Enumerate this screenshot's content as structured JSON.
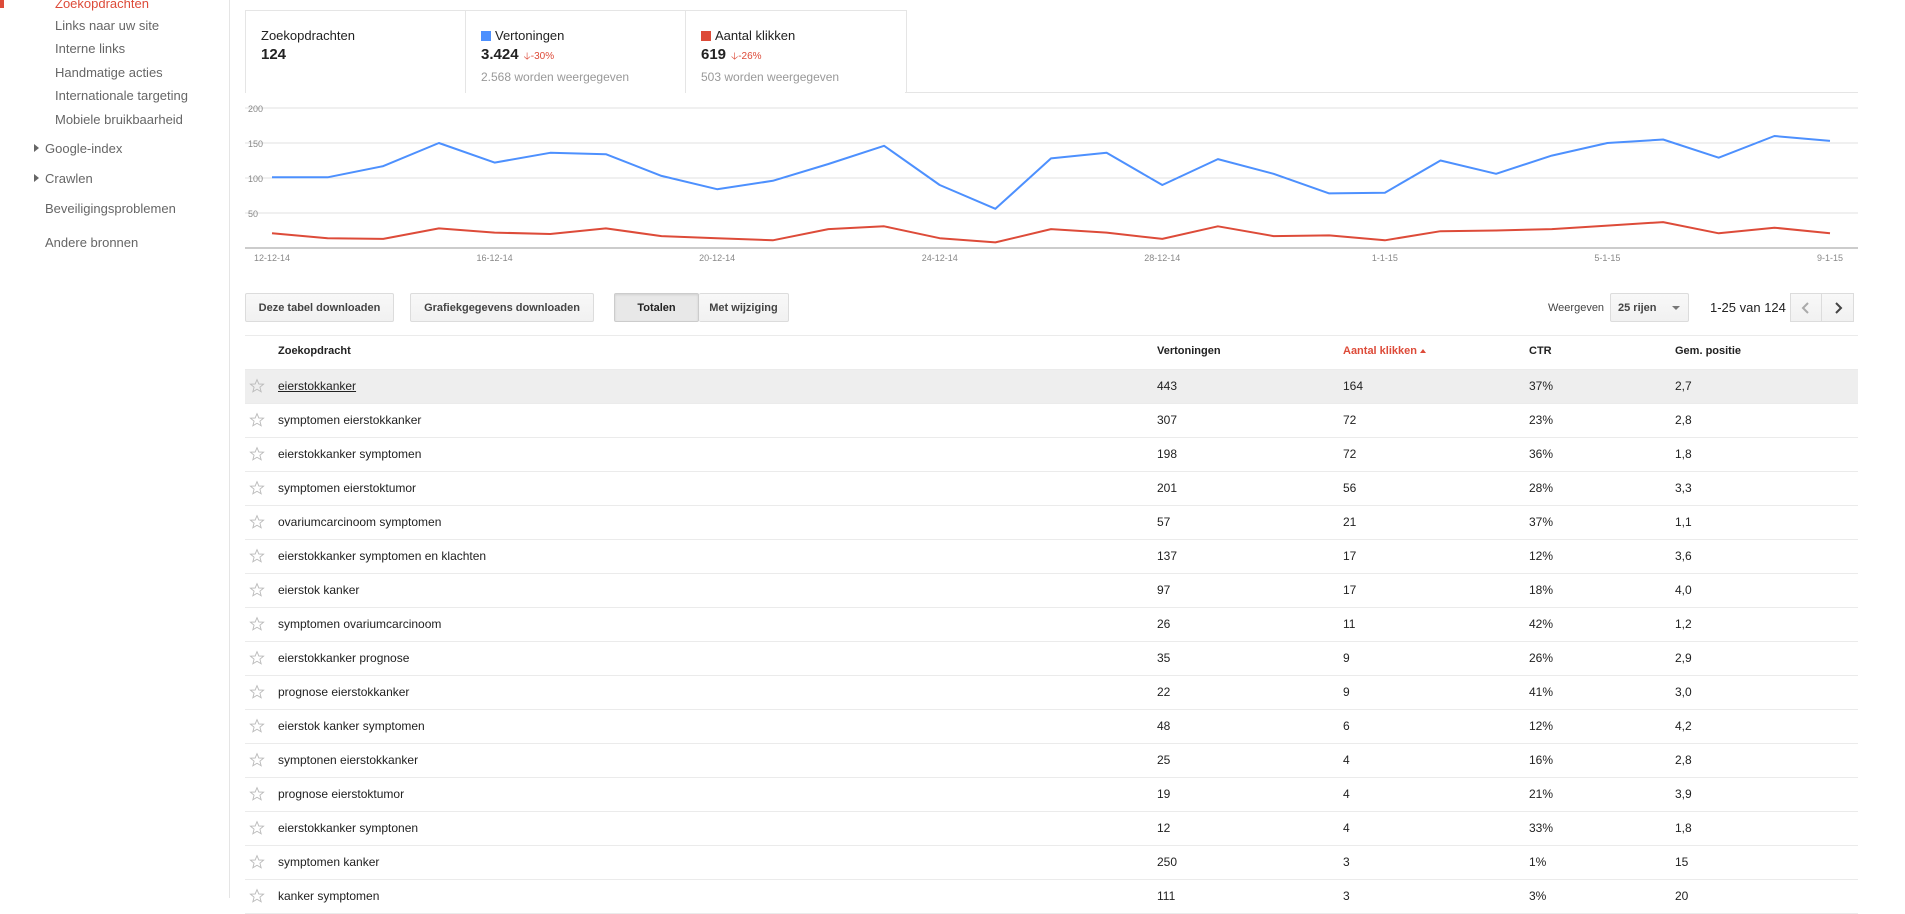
{
  "sidebar": {
    "items": [
      {
        "label": "Zoekopdrachten",
        "active": true
      },
      {
        "label": "Links naar uw site"
      },
      {
        "label": "Interne links"
      },
      {
        "label": "Handmatige acties"
      },
      {
        "label": "Internationale targeting"
      },
      {
        "label": "Mobiele bruikbaarheid"
      },
      {
        "label": "Google-index"
      },
      {
        "label": "Crawlen"
      },
      {
        "label": "Beveiligingsproblemen"
      },
      {
        "label": "Andere bronnen"
      }
    ]
  },
  "metrics": [
    {
      "label": "Zoekopdrachten",
      "value": "124",
      "delta": "",
      "sub": ""
    },
    {
      "label": "Vertoningen",
      "value": "3.424",
      "delta": "-30%",
      "sub": "2.568 worden weergegeven",
      "color": "#4d90fe"
    },
    {
      "label": "Aantal klikken",
      "value": "619",
      "delta": "-26%",
      "sub": "503 worden weergegeven",
      "color": "#dd4b39"
    }
  ],
  "chart_data": {
    "type": "line",
    "x": [
      "12-12-14",
      "13-12-14",
      "14-12-14",
      "15-12-14",
      "16-12-14",
      "17-12-14",
      "18-12-14",
      "19-12-14",
      "20-12-14",
      "21-12-14",
      "22-12-14",
      "23-12-14",
      "24-12-14",
      "25-12-14",
      "26-12-14",
      "27-12-14",
      "28-12-14",
      "29-12-14",
      "30-12-14",
      "31-12-14",
      "1-1-15",
      "2-1-15",
      "3-1-15",
      "4-1-15",
      "5-1-15",
      "6-1-15",
      "7-1-15",
      "8-1-15",
      "9-1-15"
    ],
    "tick_labels": [
      "12-12-14",
      "16-12-14",
      "20-12-14",
      "24-12-14",
      "28-12-14",
      "1-1-15",
      "5-1-15",
      "9-1-15"
    ],
    "y_ticks": [
      50,
      100,
      150,
      200
    ],
    "ylim": [
      0,
      200
    ],
    "grid": true,
    "series": [
      {
        "name": "Vertoningen",
        "color": "#4d90fe",
        "values": [
          101,
          101,
          117,
          150,
          122,
          136,
          134,
          103,
          84,
          96,
          120,
          146,
          90,
          56,
          128,
          136,
          90,
          127,
          106,
          78,
          79,
          125,
          106,
          132,
          150,
          155,
          129,
          160,
          153
        ]
      },
      {
        "name": "Aantal klikken",
        "color": "#dd4b39",
        "values": [
          21,
          14,
          13,
          28,
          22,
          20,
          28,
          17,
          14,
          11,
          27,
          31,
          14,
          8,
          27,
          22,
          13,
          31,
          17,
          18,
          11,
          24,
          25,
          27,
          32,
          37,
          21,
          29,
          21
        ]
      }
    ]
  },
  "toolbar": {
    "download_table": "Deze tabel downloaden",
    "download_chart": "Grafiekgegevens downloaden",
    "totals": "Totalen",
    "with_change": "Met wijziging",
    "show_label": "Weergeven",
    "rows_select": "25 rijen",
    "range": "1-25 van 124"
  },
  "table": {
    "headers": {
      "query": "Zoekopdracht",
      "impressions": "Vertoningen",
      "clicks": "Aantal klikken",
      "ctr": "CTR",
      "position": "Gem. positie"
    },
    "rows": [
      {
        "query": "eierstokkanker",
        "impressions": "443",
        "clicks": "164",
        "ctr": "37%",
        "position": "2,7"
      },
      {
        "query": "symptomen eierstokkanker",
        "impressions": "307",
        "clicks": "72",
        "ctr": "23%",
        "position": "2,8"
      },
      {
        "query": "eierstokkanker symptomen",
        "impressions": "198",
        "clicks": "72",
        "ctr": "36%",
        "position": "1,8"
      },
      {
        "query": "symptomen eierstoktumor",
        "impressions": "201",
        "clicks": "56",
        "ctr": "28%",
        "position": "3,3"
      },
      {
        "query": "ovariumcarcinoom symptomen",
        "impressions": "57",
        "clicks": "21",
        "ctr": "37%",
        "position": "1,1"
      },
      {
        "query": "eierstokkanker symptomen en klachten",
        "impressions": "137",
        "clicks": "17",
        "ctr": "12%",
        "position": "3,6"
      },
      {
        "query": "eierstok kanker",
        "impressions": "97",
        "clicks": "17",
        "ctr": "18%",
        "position": "4,0"
      },
      {
        "query": "symptomen ovariumcarcinoom",
        "impressions": "26",
        "clicks": "11",
        "ctr": "42%",
        "position": "1,2"
      },
      {
        "query": "eierstokkanker prognose",
        "impressions": "35",
        "clicks": "9",
        "ctr": "26%",
        "position": "2,9"
      },
      {
        "query": "prognose eierstokkanker",
        "impressions": "22",
        "clicks": "9",
        "ctr": "41%",
        "position": "3,0"
      },
      {
        "query": "eierstok kanker symptomen",
        "impressions": "48",
        "clicks": "6",
        "ctr": "12%",
        "position": "4,2"
      },
      {
        "query": "symptonen eierstokkanker",
        "impressions": "25",
        "clicks": "4",
        "ctr": "16%",
        "position": "2,8"
      },
      {
        "query": "prognose eierstoktumor",
        "impressions": "19",
        "clicks": "4",
        "ctr": "21%",
        "position": "3,9"
      },
      {
        "query": "eierstokkanker symptonen",
        "impressions": "12",
        "clicks": "4",
        "ctr": "33%",
        "position": "1,8"
      },
      {
        "query": "symptomen kanker",
        "impressions": "250",
        "clicks": "3",
        "ctr": "1%",
        "position": "15"
      },
      {
        "query": "kanker symptomen",
        "impressions": "111",
        "clicks": "3",
        "ctr": "3%",
        "position": "20"
      }
    ]
  }
}
